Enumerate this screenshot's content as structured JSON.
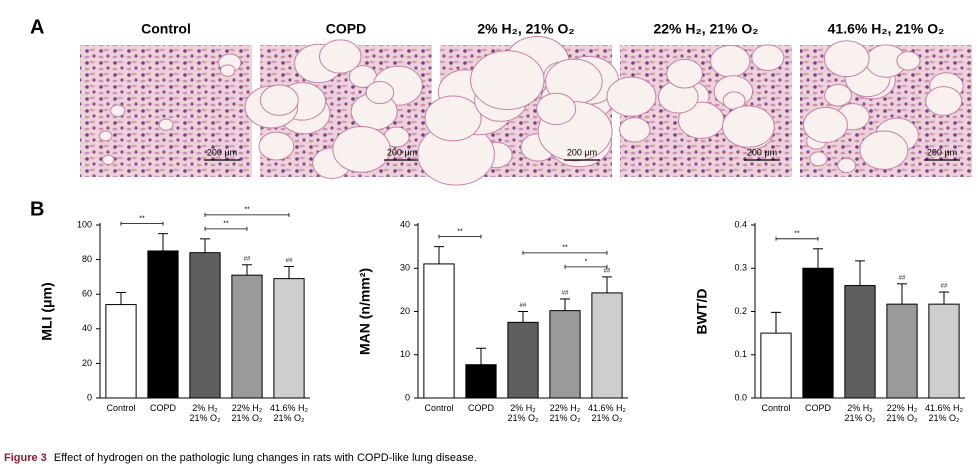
{
  "panel_a": {
    "label": "A",
    "images": [
      {
        "title": "Control",
        "scale_bar": "200 μm"
      },
      {
        "title": "COPD",
        "scale_bar": "200 μm"
      },
      {
        "title": "2% H₂, 21% O₂",
        "scale_bar": "200 μm"
      },
      {
        "title": "22% H₂, 21% O₂",
        "scale_bar": "200 μm"
      },
      {
        "title": "41.6% H₂, 21% O₂",
        "scale_bar": "200 μm"
      }
    ]
  },
  "panel_b": {
    "label": "B"
  },
  "chart_data": [
    {
      "type": "bar",
      "y_label": "MLI (μm)",
      "categories": [
        "Control",
        "COPD",
        "2% H₂ 21% O₂",
        "22% H₂ 21% O₂",
        "41.6% H₂ 21% O₂"
      ],
      "values": [
        54,
        85,
        84,
        71,
        69
      ],
      "errors": [
        7,
        10,
        8,
        6,
        7
      ],
      "colors": [
        "#ffffff",
        "#000000",
        "#5f5f5f",
        "#9a9a9a",
        "#cecece"
      ],
      "annotations": [
        null,
        null,
        null,
        "##",
        "##"
      ],
      "significance": [
        {
          "between": [
            0,
            1
          ],
          "label": "**"
        },
        {
          "between": [
            2,
            3
          ],
          "label": "**"
        },
        {
          "between": [
            2,
            4
          ],
          "label": "**"
        }
      ],
      "ylim": [
        0,
        100
      ],
      "yticks": [
        0,
        20,
        40,
        60,
        80,
        100
      ]
    },
    {
      "type": "bar",
      "y_label": "MAN (n/mm²)",
      "categories": [
        "Control",
        "COPD",
        "2% H₂ 21% O₂",
        "22% H₂ 21% O₂",
        "41.6% H₂ 21% O₂"
      ],
      "values": [
        31,
        7.7,
        17.5,
        20.2,
        24.3
      ],
      "errors": [
        4,
        3.8,
        2.5,
        2.7,
        3.7
      ],
      "colors": [
        "#ffffff",
        "#000000",
        "#5f5f5f",
        "#9a9a9a",
        "#cecece"
      ],
      "annotations": [
        null,
        null,
        "##",
        "##",
        "##"
      ],
      "significance": [
        {
          "between": [
            0,
            1
          ],
          "label": "**"
        },
        {
          "between": [
            3,
            4
          ],
          "label": "*"
        },
        {
          "between": [
            2,
            4
          ],
          "label": "**"
        }
      ],
      "ylim": [
        0,
        40
      ],
      "yticks": [
        0,
        10,
        20,
        30,
        40
      ]
    },
    {
      "type": "bar",
      "y_label": "BWT/D",
      "categories": [
        "Control",
        "COPD",
        "2% H₂ 21% O₂",
        "22% H₂ 21% O₂",
        "41.6% H₂ 21% O₂"
      ],
      "values": [
        0.15,
        0.3,
        0.26,
        0.217,
        0.217
      ],
      "errors": [
        0.048,
        0.045,
        0.057,
        0.047,
        0.028
      ],
      "colors": [
        "#ffffff",
        "#000000",
        "#5f5f5f",
        "#9a9a9a",
        "#cecece"
      ],
      "annotations": [
        null,
        null,
        null,
        "##",
        "##"
      ],
      "significance": [
        {
          "between": [
            0,
            1
          ],
          "label": "**"
        }
      ],
      "ylim": [
        0,
        0.4
      ],
      "yticks": [
        {
          "value": 0,
          "label": "0.0"
        },
        0.1,
        0.2,
        0.3,
        0.4
      ]
    }
  ],
  "caption": {
    "label": "Figure 3",
    "text": "Effect of hydrogen on the pathologic lung changes in rats with COPD-like lung disease."
  }
}
